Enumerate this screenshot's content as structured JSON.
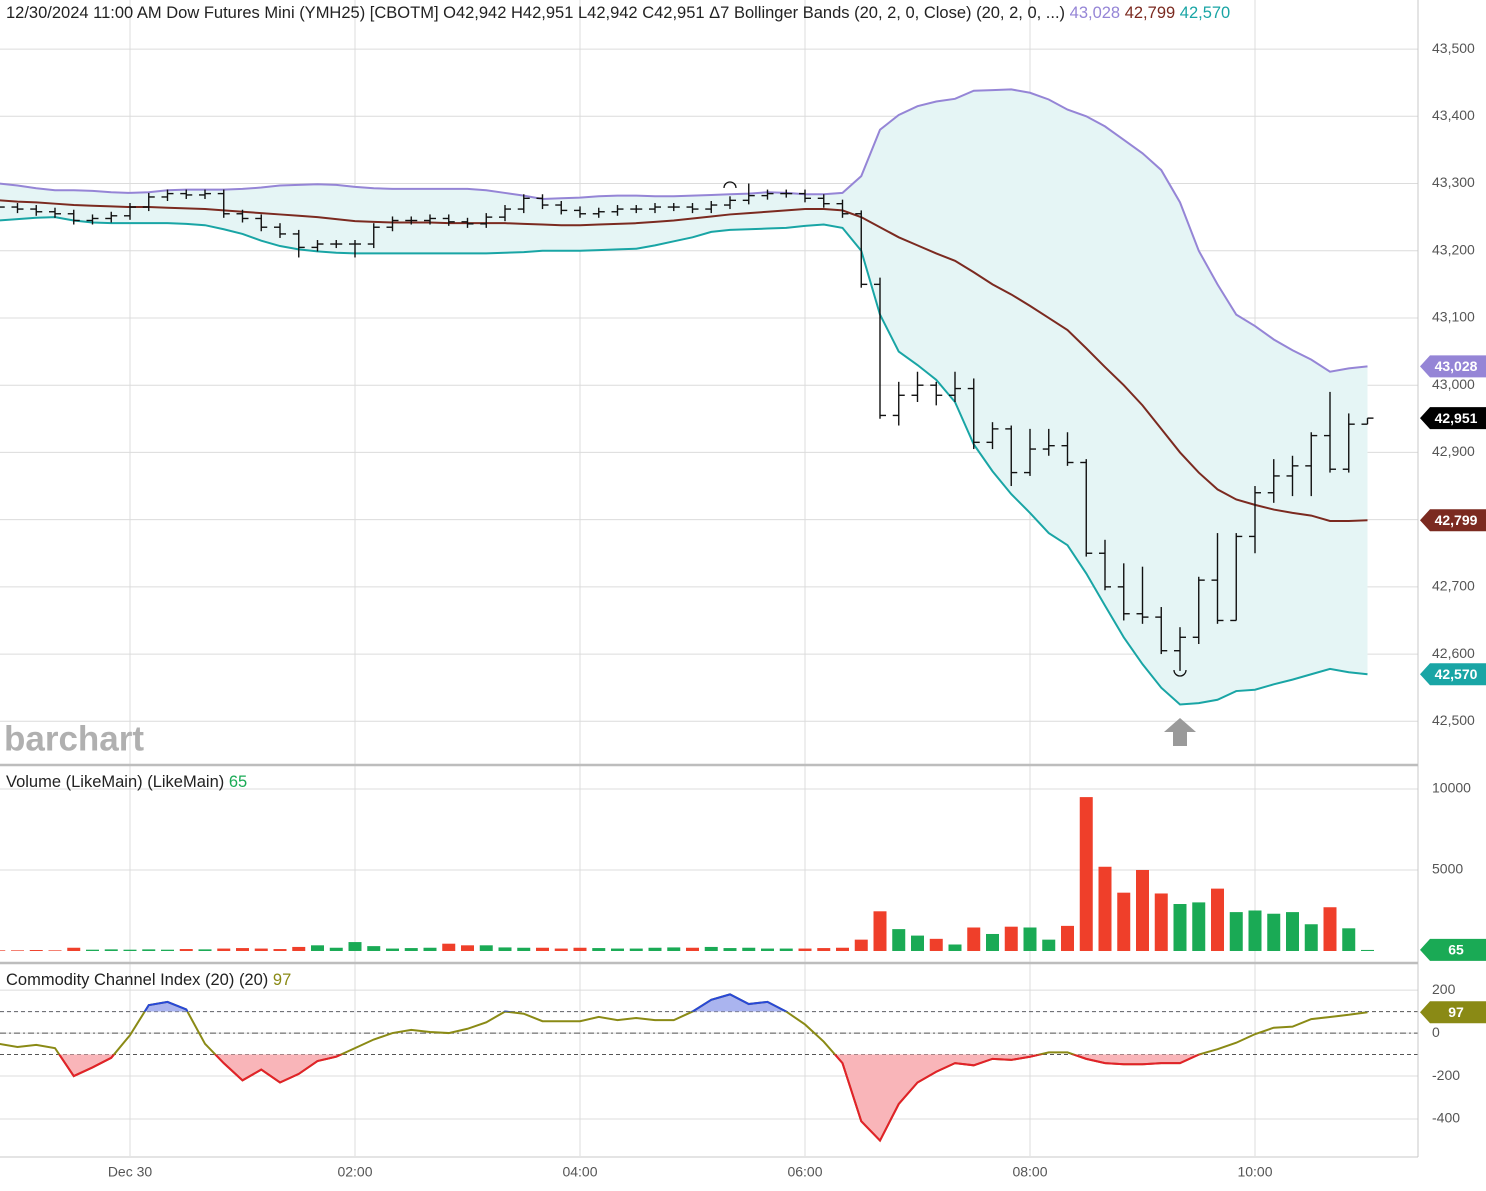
{
  "watermark": "barchart",
  "chart_data": [
    {
      "type": "ohlc",
      "title": "12/30/2024 11:00 AM Dow Futures Mini (YMH25) [CBOTM] O42,942 H42,951 L42,942 C42,951 Δ7",
      "indicator": "Bollinger Bands (20, 2, 0, Close)  (20, 2, 0, ...)",
      "categories": [
        null,
        null,
        null,
        null,
        null,
        null,
        null,
        "Dec 30",
        null,
        null,
        null,
        null,
        null,
        null,
        null,
        null,
        null,
        null,
        null,
        "02:00",
        null,
        null,
        null,
        null,
        null,
        null,
        null,
        null,
        null,
        null,
        null,
        "04:00",
        null,
        null,
        null,
        null,
        null,
        null,
        null,
        null,
        null,
        null,
        null,
        "06:00",
        null,
        null,
        null,
        null,
        null,
        null,
        null,
        null,
        null,
        null,
        null,
        "08:00",
        null,
        null,
        null,
        null,
        null,
        null,
        null,
        null,
        null,
        null,
        null,
        "10:00",
        null,
        null,
        null,
        null,
        null,
        null
      ],
      "open": [
        43268,
        43265,
        43262,
        43258,
        43255,
        43245,
        43248,
        43252,
        43265,
        43280,
        43285,
        43283,
        43285,
        43255,
        43248,
        43235,
        43225,
        43205,
        43210,
        43210,
        43210,
        43235,
        43245,
        43245,
        43248,
        43243,
        43240,
        43250,
        43262,
        43278,
        43268,
        43260,
        43255,
        43258,
        43262,
        43262,
        43265,
        43265,
        43262,
        43268,
        43275,
        43282,
        43285,
        43285,
        43278,
        43270,
        43255,
        43150,
        42955,
        42985,
        43000,
        42985,
        42995,
        42915,
        42935,
        42870,
        42905,
        42910,
        42885,
        42750,
        42700,
        42660,
        42655,
        42605,
        42625,
        42710,
        42650,
        42775,
        42840,
        42865,
        42880,
        42925,
        42875,
        42942
      ],
      "high": [
        43274,
        43271,
        43268,
        43264,
        43261,
        43254,
        43258,
        43271,
        43286,
        43291,
        43291,
        43291,
        43291,
        43261,
        43254,
        43241,
        43231,
        43216,
        43216,
        43216,
        43241,
        43251,
        43251,
        43254,
        43254,
        43249,
        43256,
        43268,
        43284,
        43284,
        43274,
        43266,
        43264,
        43268,
        43268,
        43271,
        43271,
        43271,
        43274,
        43281,
        43300,
        43291,
        43291,
        43291,
        43284,
        43276,
        43260,
        43160,
        43005,
        43020,
        43005,
        43020,
        43010,
        42945,
        42940,
        42935,
        42935,
        42930,
        42890,
        42770,
        42735,
        42730,
        42670,
        42640,
        42715,
        42780,
        42780,
        42850,
        42890,
        42895,
        42930,
        42990,
        42958,
        42951
      ],
      "low": [
        43259,
        43256,
        43252,
        43249,
        43239,
        43239,
        43242,
        43246,
        43259,
        43274,
        43277,
        43277,
        43249,
        43242,
        43229,
        43219,
        43190,
        43199,
        43204,
        43190,
        43204,
        43229,
        43239,
        43239,
        43237,
        43234,
        43234,
        43244,
        43256,
        43262,
        43254,
        43249,
        43249,
        43252,
        43256,
        43256,
        43259,
        43256,
        43256,
        43262,
        43269,
        43276,
        43279,
        43272,
        43264,
        43249,
        43145,
        42950,
        42940,
        42975,
        42970,
        42975,
        42905,
        42905,
        42850,
        42865,
        42895,
        42880,
        42745,
        42695,
        42650,
        42645,
        42600,
        42575,
        42615,
        42645,
        42650,
        42750,
        42825,
        42835,
        42835,
        42870,
        42870,
        42942
      ],
      "close": [
        43265,
        43262,
        43258,
        43255,
        43245,
        43248,
        43252,
        43265,
        43280,
        43285,
        43283,
        43285,
        43255,
        43248,
        43235,
        43225,
        43205,
        43210,
        43210,
        43210,
        43235,
        43245,
        43245,
        43248,
        43243,
        43240,
        43250,
        43262,
        43278,
        43268,
        43260,
        43255,
        43258,
        43262,
        43262,
        43265,
        43265,
        43262,
        43268,
        43275,
        43282,
        43285,
        43285,
        43278,
        43270,
        43255,
        43150,
        42955,
        42985,
        43000,
        42985,
        42995,
        42915,
        42935,
        42870,
        42905,
        42910,
        42885,
        42750,
        42700,
        42660,
        42655,
        42605,
        42625,
        42710,
        42650,
        42775,
        42840,
        42865,
        42880,
        42925,
        42875,
        42942,
        42951
      ],
      "close_label": "42,951",
      "close_color": "#000000",
      "bar_color": "#111111",
      "bands": [
        {
          "color": "#9585d6",
          "last_label": "43,028",
          "values": [
            43300,
            43297,
            43293,
            43290,
            43290,
            43289,
            43287,
            43286,
            43287,
            43290,
            43291,
            43291,
            43291,
            43292,
            43294,
            43297,
            43298,
            43299,
            43298,
            43295,
            43293,
            43292,
            43292,
            43292,
            43292,
            43292,
            43290,
            43286,
            43282,
            43277,
            43278,
            43279,
            43281,
            43282,
            43282,
            43281,
            43281,
            43282,
            43283,
            43284,
            43285,
            43287,
            43286,
            43284,
            43284,
            43286,
            43311,
            43380,
            43402,
            43415,
            43422,
            43426,
            43438,
            43439,
            43440,
            43435,
            43425,
            43410,
            43400,
            43385,
            43365,
            43345,
            43320,
            43272,
            43200,
            43150,
            43105,
            43088,
            43068,
            43052,
            43038,
            43020,
            43025,
            43028
          ]
        },
        {
          "color": "#7b2a20",
          "last_label": "42,799",
          "values": [
            43275,
            43273,
            43272,
            43270,
            43268,
            43267,
            43266,
            43265,
            43265,
            43264,
            43263,
            43262,
            43260,
            43258,
            43256,
            43254,
            43252,
            43250,
            43247,
            43244,
            43243,
            43242,
            43242,
            43242,
            43241,
            43241,
            43241,
            43241,
            43240,
            43239,
            43238,
            43238,
            43239,
            43240,
            43241,
            43243,
            43245,
            43248,
            43251,
            43254,
            43256,
            43258,
            43260,
            43262,
            43262,
            43260,
            43250,
            43235,
            43220,
            43208,
            43196,
            43185,
            43168,
            43150,
            43135,
            43118,
            43100,
            43082,
            43055,
            43027,
            43000,
            42970,
            42935,
            42900,
            42870,
            42845,
            42830,
            42822,
            42815,
            42810,
            42806,
            42798,
            42798,
            42799
          ]
        },
        {
          "color": "#19a5a5",
          "last_label": "42,570",
          "values": [
            43245,
            43247,
            43249,
            43250,
            43245,
            43242,
            43241,
            43241,
            43241,
            43241,
            43240,
            43238,
            43232,
            43225,
            43215,
            43207,
            43202,
            43199,
            43197,
            43196,
            43196,
            43196,
            43196,
            43196,
            43196,
            43196,
            43196,
            43197,
            43198,
            43200,
            43200,
            43200,
            43201,
            43202,
            43203,
            43208,
            43214,
            43220,
            43228,
            43231,
            43232,
            43233,
            43234,
            43237,
            43239,
            43234,
            43200,
            43105,
            43050,
            43030,
            43008,
            42975,
            42912,
            42872,
            42838,
            42810,
            42780,
            42762,
            42720,
            42672,
            42625,
            42585,
            42550,
            42525,
            42527,
            42532,
            42545,
            42547,
            42555,
            42562,
            42570,
            42578,
            42573,
            42570
          ]
        }
      ],
      "band_fill": "#e5f5f5",
      "ylim": [
        42435,
        43573
      ],
      "yticks": [
        {
          "value": 42500,
          "label": "42,500"
        },
        {
          "value": 42600,
          "label": "42,600"
        },
        {
          "value": 42700,
          "label": "42,700"
        },
        {
          "value": 42800,
          "label": "42,800"
        },
        {
          "value": 42900,
          "label": "42,900"
        },
        {
          "value": 43000,
          "label": "43,000"
        },
        {
          "value": 43100,
          "label": "43,100"
        },
        {
          "value": 43200,
          "label": "43,200"
        },
        {
          "value": 43300,
          "label": "43,300"
        },
        {
          "value": 43400,
          "label": "43,400"
        },
        {
          "value": 43500,
          "label": "43,500"
        }
      ],
      "grid": true
    },
    {
      "type": "bar",
      "title": "Volume (LikeMain)  (LikeMain)",
      "values": [
        40,
        40,
        60,
        40,
        200,
        80,
        100,
        80,
        100,
        80,
        120,
        100,
        150,
        180,
        150,
        120,
        250,
        350,
        200,
        550,
        300,
        150,
        180,
        200,
        450,
        350,
        350,
        220,
        200,
        200,
        150,
        200,
        180,
        150,
        150,
        200,
        220,
        200,
        250,
        180,
        200,
        150,
        150,
        150,
        180,
        200,
        700,
        2450,
        1350,
        950,
        750,
        400,
        1450,
        1050,
        1500,
        1450,
        700,
        1550,
        9500,
        5200,
        3600,
        5000,
        3550,
        2900,
        3000,
        3850,
        2400,
        2500,
        2300,
        2400,
        1650,
        2700,
        1400,
        65
      ],
      "up_color": "#1aaa55",
      "down_color": "#ef3f2a",
      "ylim": [
        -680,
        11420
      ],
      "yticks": [
        5000,
        10000
      ],
      "grid": true
    },
    {
      "type": "line",
      "title": "Commodity Channel Index (20)  (20)",
      "values": [
        -50,
        -65,
        -55,
        -70,
        -200,
        -160,
        -115,
        -10,
        130,
        145,
        110,
        -50,
        -140,
        -220,
        -170,
        -230,
        -190,
        -130,
        -110,
        -70,
        -30,
        0,
        15,
        5,
        0,
        20,
        50,
        100,
        90,
        55,
        55,
        55,
        75,
        60,
        70,
        60,
        60,
        100,
        155,
        180,
        135,
        145,
        100,
        40,
        -40,
        -140,
        -410,
        -500,
        -330,
        -230,
        -180,
        -140,
        -150,
        -120,
        -125,
        -110,
        -90,
        -90,
        -120,
        -140,
        -145,
        -145,
        -140,
        -140,
        -100,
        -75,
        -45,
        -5,
        25,
        30,
        65,
        75,
        85,
        97
      ],
      "color": "#8a8a15",
      "high_color": "#2848d8",
      "high_fill": "#aab4ef",
      "low_color": "#e3202a",
      "low_fill": "#f9b5b9",
      "levels": [
        100,
        0,
        -100
      ],
      "ylim": [
        -572,
        326
      ],
      "yticks": [
        -400,
        -200,
        0,
        200
      ],
      "grid": true
    }
  ]
}
